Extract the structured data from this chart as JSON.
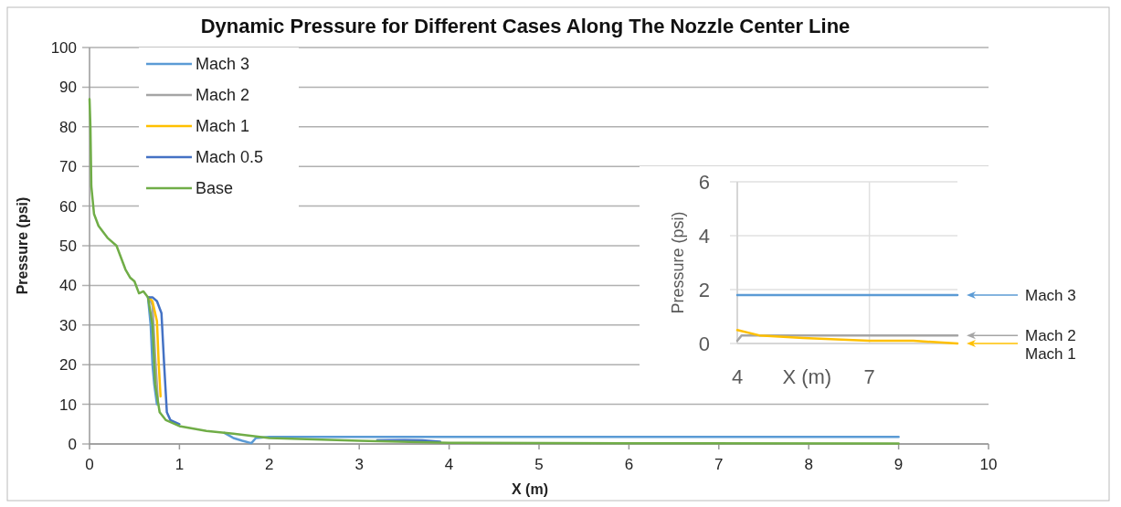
{
  "chart_data": [
    {
      "type": "line",
      "title": "Dynamic Pressure for Different Cases Along The Nozzle Center Line",
      "xlabel": "X (m)",
      "ylabel": "Pressure (psi)",
      "xlim": [
        0,
        10
      ],
      "ylim": [
        0,
        100
      ],
      "xticks": [
        0,
        1,
        2,
        3,
        4,
        5,
        6,
        7,
        8,
        9,
        10
      ],
      "yticks": [
        0,
        10,
        20,
        30,
        40,
        50,
        60,
        70,
        80,
        90,
        100
      ],
      "grid": "y",
      "legend": "top left",
      "series": [
        {
          "name": "Mach 3",
          "color": "#5b9bd5",
          "x": [
            0.65,
            0.68,
            0.7,
            0.72,
            0.75,
            1.45,
            1.5,
            1.6,
            1.7,
            1.8,
            1.85,
            2.0,
            3,
            5,
            7,
            9
          ],
          "values": [
            37,
            30,
            20,
            15,
            10,
            null,
            2.8,
            1.5,
            0.8,
            0.2,
            1.5,
            1.8,
            1.8,
            1.8,
            1.8,
            1.8
          ]
        },
        {
          "name": "Mach 2",
          "color": "#a5a5a5",
          "x": [
            0.66,
            0.7,
            0.73,
            0.76
          ],
          "values": [
            37,
            35,
            22,
            11
          ]
        },
        {
          "name": "Mach 1",
          "color": "#ffc000",
          "x": [
            0.66,
            0.7,
            0.75,
            0.77,
            0.79
          ],
          "values": [
            37,
            36,
            31,
            20,
            12
          ]
        },
        {
          "name": "Mach 0.5",
          "color": "#4472c4",
          "x": [
            0.65,
            0.7,
            0.75,
            0.8,
            0.83,
            0.86,
            0.9,
            1.0,
            3.0,
            3.2,
            3.5,
            3.7,
            3.9
          ],
          "values": [
            37,
            37,
            36,
            33,
            20,
            8,
            6,
            5,
            null,
            0.9,
            1.0,
            0.9,
            0.6
          ]
        },
        {
          "name": "Base",
          "color": "#70ad47",
          "x": [
            0,
            0.01,
            0.02,
            0.05,
            0.1,
            0.2,
            0.3,
            0.4,
            0.45,
            0.5,
            0.55,
            0.6,
            0.65,
            0.7,
            0.73,
            0.78,
            0.85,
            1.0,
            1.3,
            1.6,
            2.0,
            3,
            4,
            6,
            9
          ],
          "values": [
            87,
            80,
            65,
            58,
            55,
            52,
            50,
            44,
            42,
            41,
            38,
            38.5,
            37,
            30,
            15,
            8,
            6,
            4.5,
            3.3,
            2.6,
            1.5,
            0.8,
            0.3,
            0.2,
            0.1
          ]
        }
      ]
    },
    {
      "type": "line",
      "xlabel": "X (m)",
      "ylabel": "Pressure (psi)",
      "xlim": [
        4,
        9
      ],
      "ylim": [
        0,
        6
      ],
      "xticks": [
        4,
        7
      ],
      "yticks": [
        0,
        2,
        4,
        6
      ],
      "grid": true,
      "legend": "right",
      "series": [
        {
          "name": "Mach 3",
          "color": "#5b9bd5",
          "x": [
            4,
            9
          ],
          "values": [
            1.8,
            1.8
          ]
        },
        {
          "name": "Mach 2",
          "color": "#a5a5a5",
          "x": [
            4,
            4.1,
            5,
            7,
            9
          ],
          "values": [
            0.1,
            0.3,
            0.3,
            0.3,
            0.3
          ]
        },
        {
          "name": "Mach 1",
          "color": "#ffc000",
          "x": [
            4,
            4.5,
            5.5,
            7,
            8,
            9
          ],
          "values": [
            0.5,
            0.3,
            0.2,
            0.1,
            0.1,
            0.0
          ]
        }
      ]
    }
  ]
}
